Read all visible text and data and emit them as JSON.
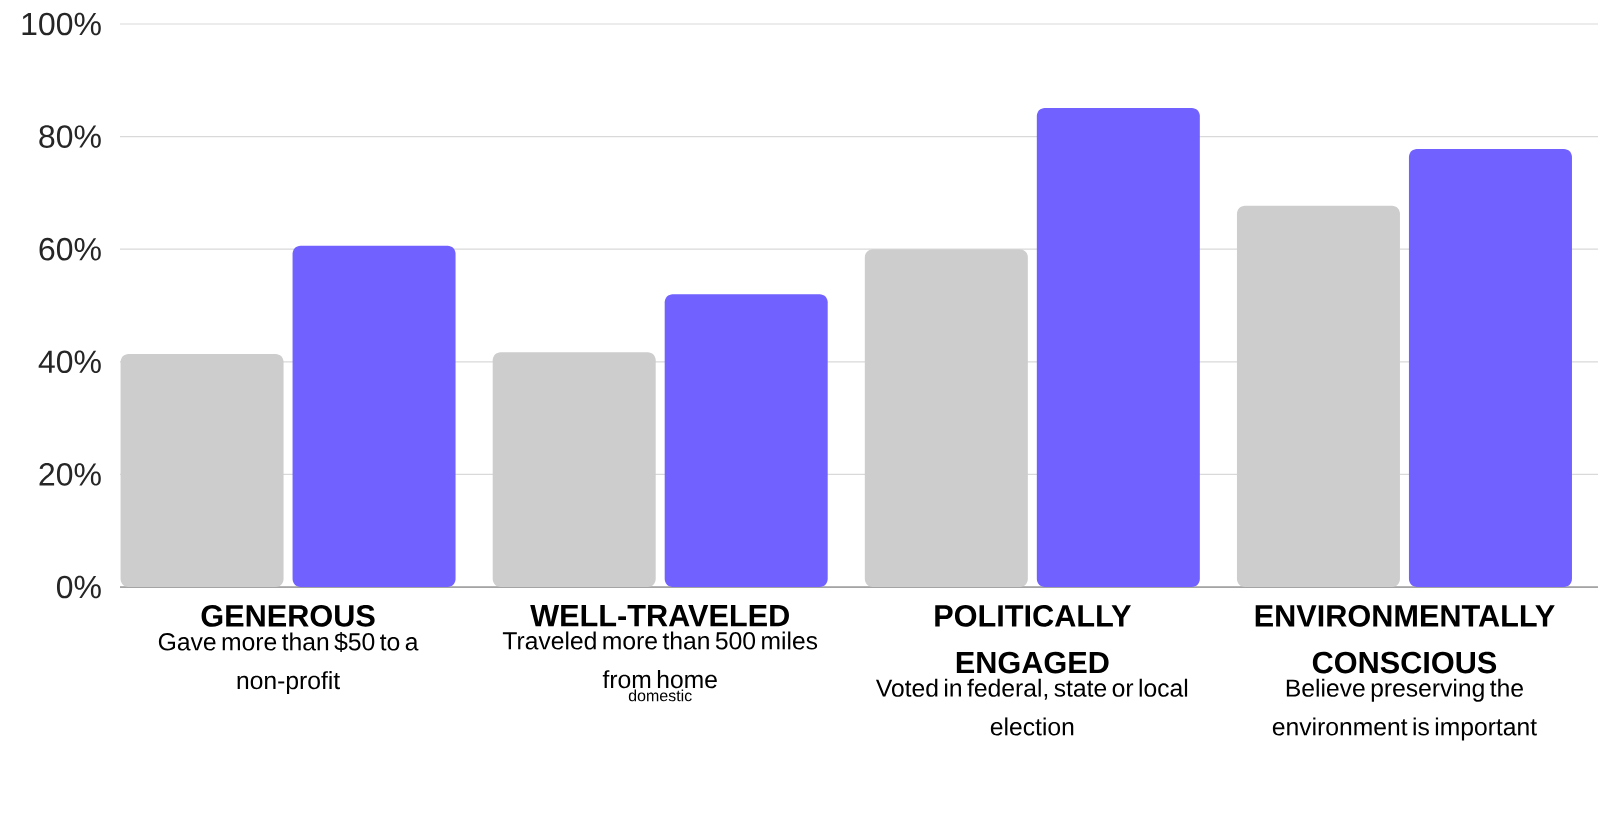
{
  "chart_data": {
    "type": "bar",
    "categories": [
      "GENEROUS",
      "WELL-TRAVELED",
      "POLITICALLY ENGAGED",
      "ENVIRONMENTALLY CONSCIOUS"
    ],
    "series": [
      {
        "color": "#cccdcc",
        "values": [
          41.4,
          41.7,
          60.0,
          67.7
        ]
      },
      {
        "color": "#7161ff",
        "values": [
          60.6,
          52.0,
          85.1,
          77.8
        ]
      }
    ],
    "ylim": [
      0,
      100
    ],
    "yticks": [
      {
        "value": 0,
        "label": "0%"
      },
      {
        "value": 20,
        "label": "20%"
      },
      {
        "value": 40,
        "label": "40%"
      },
      {
        "value": 60,
        "label": "60%"
      },
      {
        "value": 80,
        "label": "80%"
      },
      {
        "value": 100,
        "label": "100%"
      }
    ],
    "grid": "y",
    "annotations": [
      "Gave more than $50 to a non-profit",
      "Traveled more than 500 miles from home",
      "Voted in federal, state or local election",
      "Believe preserving the environment is important",
      "domestic"
    ]
  }
}
